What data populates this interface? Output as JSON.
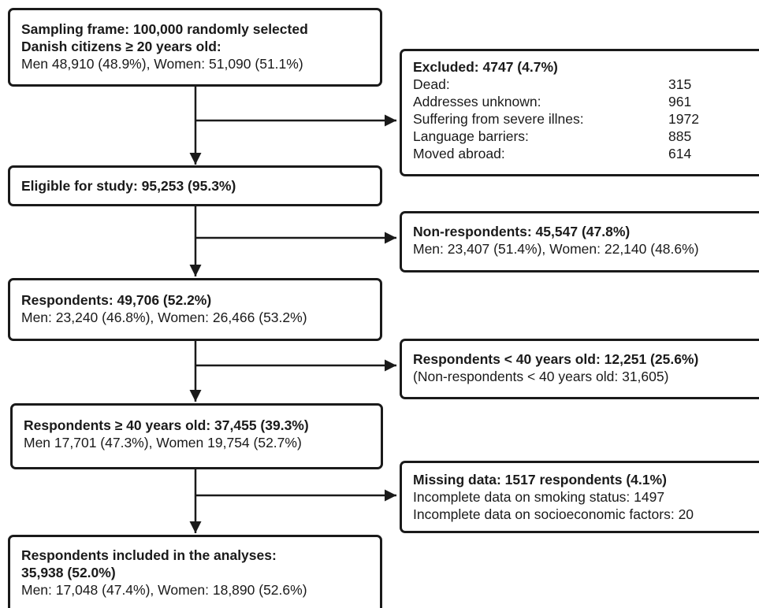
{
  "sampling": {
    "title_1": "Sampling frame: 100,000 randomly selected",
    "title_2": "Danish citizens ≥ 20 years old:",
    "detail": "Men 48,910 (48.9%),  Women: 51,090 (51.1%)"
  },
  "excluded": {
    "title": "Excluded: 4747 (4.7%)",
    "items": [
      {
        "label": "Dead:",
        "value": "315"
      },
      {
        "label": "Addresses unknown:",
        "value": "961"
      },
      {
        "label": "Suffering from severe illnes:",
        "value": "1972"
      },
      {
        "label": "Language barriers:",
        "value": "885"
      },
      {
        "label": "Moved abroad:",
        "value": "614"
      }
    ]
  },
  "eligible": {
    "title": "Eligible for study: 95,253 (95.3%)"
  },
  "non_respondents": {
    "title": "Non-respondents: 45,547 (47.8%)",
    "detail": "Men: 23,407 (51.4%), Women: 22,140 (48.6%)"
  },
  "respondents": {
    "title": "Respondents: 49,706 (52.2%)",
    "detail": "Men: 23,240 (46.8%), Women: 26,466 (53.2%)"
  },
  "under_40": {
    "title": "Respondents < 40 years old: 12,251 (25.6%)",
    "detail": "(Non-respondents < 40 years old: 31,605)"
  },
  "over_40": {
    "title": "Respondents ≥ 40 years old: 37,455 (39.3%)",
    "detail": "Men 17,701 (47.3%), Women 19,754 (52.7%)"
  },
  "missing": {
    "title": "Missing data: 1517  respondents (4.1%)",
    "detail_1": "Incomplete data on smoking status: 1497",
    "detail_2": "Incomplete data on socioeconomic factors: 20"
  },
  "included": {
    "title_1": "Respondents included in the analyses:",
    "title_2": "35,938 (52.0%)",
    "detail": "Men: 17,048 (47.4%), Women: 18,890 (52.6%)"
  }
}
